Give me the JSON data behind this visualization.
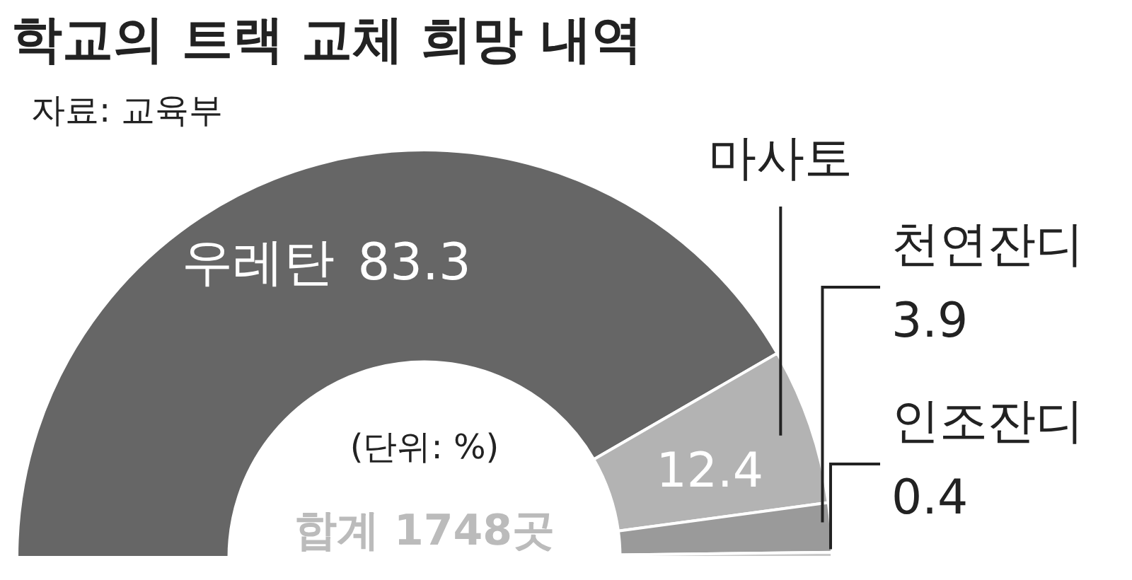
{
  "chart_data": {
    "type": "donut",
    "title": "학교의 트랙 교체 희망 내역",
    "subtitle": "자료: 교육부",
    "categories": [
      "우레탄",
      "마사토",
      "천연잔디",
      "인조잔디"
    ],
    "values": [
      83.3,
      12.4,
      3.9,
      0.4
    ],
    "colors": [
      "#666666",
      "#b3b3b3",
      "#9a9a9a",
      "#c8c8c8"
    ],
    "data_labels": true,
    "annotations": [
      "(단위: %)",
      "합계 1748곳"
    ]
  }
}
